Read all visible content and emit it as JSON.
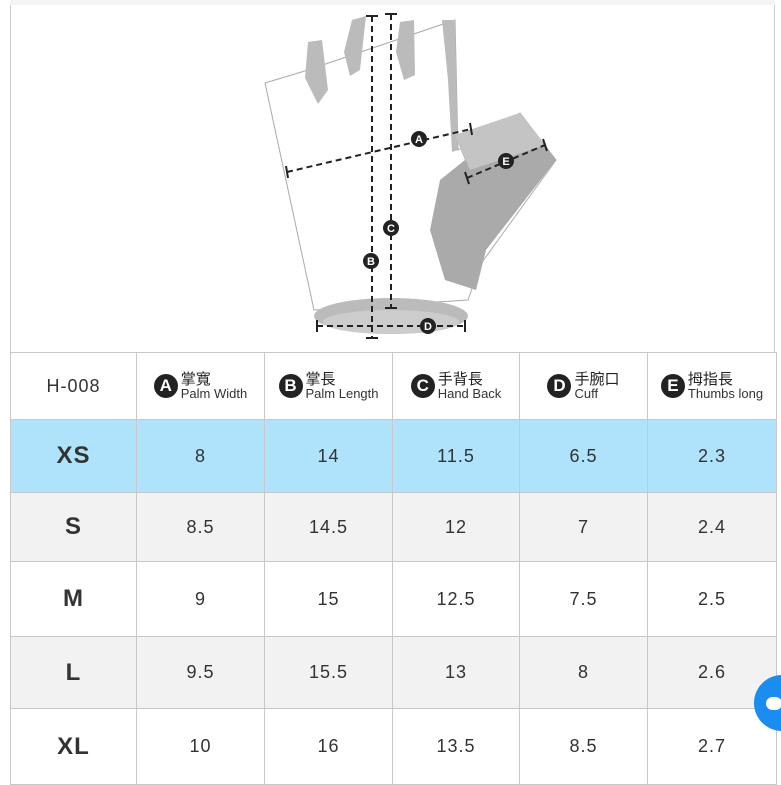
{
  "model": "H-008",
  "columns": [
    {
      "badge": "A",
      "zh": "掌寬",
      "en": "Palm Width"
    },
    {
      "badge": "B",
      "zh": "掌長",
      "en": "Palm Length"
    },
    {
      "badge": "C",
      "zh": "手背長",
      "en": "Hand Back"
    },
    {
      "badge": "D",
      "zh": "手腕口",
      "en": "Cuff"
    },
    {
      "badge": "E",
      "zh": "拇指長",
      "en": "Thumbs long"
    }
  ],
  "rows": [
    {
      "size": "XS",
      "values": [
        "8",
        "14",
        "11.5",
        "6.5",
        "2.3"
      ]
    },
    {
      "size": "S",
      "values": [
        "8.5",
        "14.5",
        "12",
        "7",
        "2.4"
      ]
    },
    {
      "size": "M",
      "values": [
        "9",
        "15",
        "12.5",
        "7.5",
        "2.5"
      ]
    },
    {
      "size": "L",
      "values": [
        "9.5",
        "15.5",
        "13",
        "8",
        "2.6"
      ]
    },
    {
      "size": "XL",
      "values": [
        "10",
        "16",
        "13.5",
        "8.5",
        "2.7"
      ]
    }
  ],
  "diagram_labels": [
    "A",
    "B",
    "C",
    "D",
    "E"
  ],
  "highlight_color": "#aee3fb",
  "chat_icon": "chat-bubble-icon"
}
